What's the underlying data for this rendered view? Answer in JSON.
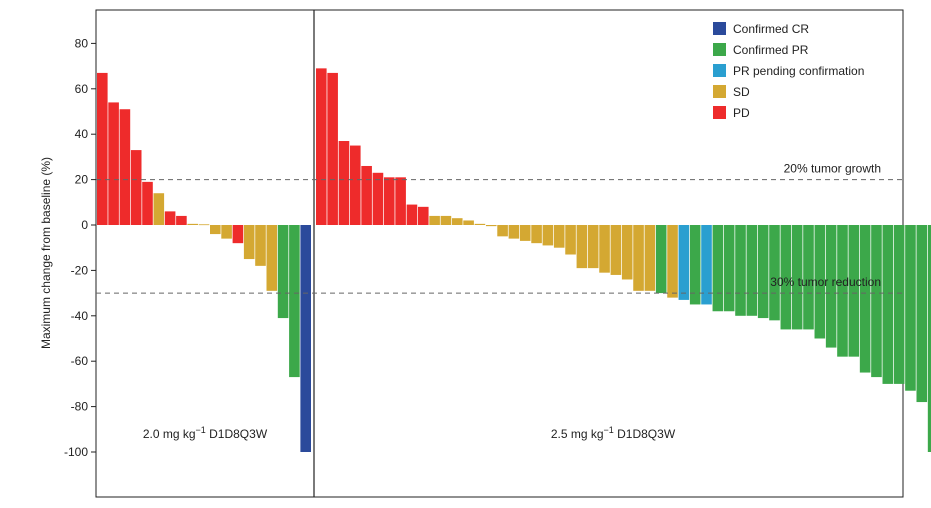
{
  "chart_data": {
    "type": "bar",
    "ylabel": "Maximum change from baseline (%)",
    "ylim": [
      -120,
      95
    ],
    "yticks": [
      "80",
      "60",
      "40",
      "20",
      "0",
      "-20",
      "-40",
      "-60",
      "-80",
      "-100"
    ],
    "ytick_values": [
      80,
      60,
      40,
      20,
      0,
      -20,
      -40,
      -60,
      -80,
      -100
    ],
    "reference_lines": [
      {
        "value": 20,
        "label": "20% tumor growth"
      },
      {
        "value": -30,
        "label": "30% tumor reduction"
      }
    ],
    "legend": {
      "position": "top-right",
      "items": [
        {
          "key": "CR",
          "label": "Confirmed CR",
          "color": "#2b4a9b"
        },
        {
          "key": "PR",
          "label": "Confirmed PR",
          "color": "#3ca84a"
        },
        {
          "key": "PRP",
          "label": "PR pending confirmation",
          "color": "#2a9fd0"
        },
        {
          "key": "SD",
          "label": "SD",
          "color": "#d4a832"
        },
        {
          "key": "PD",
          "label": "PD",
          "color": "#ee2b2b"
        }
      ]
    },
    "panels": [
      {
        "label_main": "2.0 mg kg",
        "label_sup": "−1",
        "label_rest": " D1D8Q3W",
        "bars": [
          {
            "v": 67,
            "c": "PD"
          },
          {
            "v": 54,
            "c": "PD"
          },
          {
            "v": 51,
            "c": "PD"
          },
          {
            "v": 33,
            "c": "PD"
          },
          {
            "v": 19,
            "c": "PD"
          },
          {
            "v": 14,
            "c": "SD"
          },
          {
            "v": 6,
            "c": "PD"
          },
          {
            "v": 4,
            "c": "PD"
          },
          {
            "v": 0.5,
            "c": "SD"
          },
          {
            "v": 0.3,
            "c": "SD"
          },
          {
            "v": -4,
            "c": "SD"
          },
          {
            "v": -6,
            "c": "SD"
          },
          {
            "v": -8,
            "c": "PD"
          },
          {
            "v": -15,
            "c": "SD"
          },
          {
            "v": -18,
            "c": "SD"
          },
          {
            "v": -29,
            "c": "SD"
          },
          {
            "v": -41,
            "c": "PR"
          },
          {
            "v": -67,
            "c": "PR"
          },
          {
            "v": -100,
            "c": "CR"
          }
        ]
      },
      {
        "label_main": "2.5 mg kg",
        "label_sup": "−1",
        "label_rest": " D1D8Q3W",
        "bars": [
          {
            "v": 69,
            "c": "PD"
          },
          {
            "v": 67,
            "c": "PD"
          },
          {
            "v": 37,
            "c": "PD"
          },
          {
            "v": 35,
            "c": "PD"
          },
          {
            "v": 26,
            "c": "PD"
          },
          {
            "v": 23,
            "c": "PD"
          },
          {
            "v": 21,
            "c": "PD"
          },
          {
            "v": 21,
            "c": "PD"
          },
          {
            "v": 9,
            "c": "PD"
          },
          {
            "v": 8,
            "c": "PD"
          },
          {
            "v": 4,
            "c": "SD"
          },
          {
            "v": 4,
            "c": "SD"
          },
          {
            "v": 3,
            "c": "SD"
          },
          {
            "v": 2,
            "c": "SD"
          },
          {
            "v": 0.5,
            "c": "SD"
          },
          {
            "v": -0.5,
            "c": "SD"
          },
          {
            "v": -5,
            "c": "SD"
          },
          {
            "v": -6,
            "c": "SD"
          },
          {
            "v": -7,
            "c": "SD"
          },
          {
            "v": -8,
            "c": "SD"
          },
          {
            "v": -9,
            "c": "SD"
          },
          {
            "v": -10,
            "c": "SD"
          },
          {
            "v": -13,
            "c": "SD"
          },
          {
            "v": -19,
            "c": "SD"
          },
          {
            "v": -19,
            "c": "SD"
          },
          {
            "v": -21,
            "c": "SD"
          },
          {
            "v": -22,
            "c": "SD"
          },
          {
            "v": -24,
            "c": "SD"
          },
          {
            "v": -29,
            "c": "SD"
          },
          {
            "v": -29,
            "c": "SD"
          },
          {
            "v": -30,
            "c": "PR"
          },
          {
            "v": -32,
            "c": "SD"
          },
          {
            "v": -33,
            "c": "PRP"
          },
          {
            "v": -35,
            "c": "PR"
          },
          {
            "v": -35,
            "c": "PRP"
          },
          {
            "v": -38,
            "c": "PR"
          },
          {
            "v": -38,
            "c": "PR"
          },
          {
            "v": -40,
            "c": "PR"
          },
          {
            "v": -40,
            "c": "PR"
          },
          {
            "v": -41,
            "c": "PR"
          },
          {
            "v": -42,
            "c": "PR"
          },
          {
            "v": -46,
            "c": "PR"
          },
          {
            "v": -46,
            "c": "PR"
          },
          {
            "v": -46,
            "c": "PR"
          },
          {
            "v": -50,
            "c": "PR"
          },
          {
            "v": -54,
            "c": "PR"
          },
          {
            "v": -58,
            "c": "PR"
          },
          {
            "v": -58,
            "c": "PR"
          },
          {
            "v": -65,
            "c": "PR"
          },
          {
            "v": -67,
            "c": "PR"
          },
          {
            "v": -70,
            "c": "PR"
          },
          {
            "v": -70,
            "c": "PR"
          },
          {
            "v": -73,
            "c": "PR"
          },
          {
            "v": -78,
            "c": "PR"
          },
          {
            "v": -100,
            "c": "PR"
          }
        ]
      }
    ]
  }
}
